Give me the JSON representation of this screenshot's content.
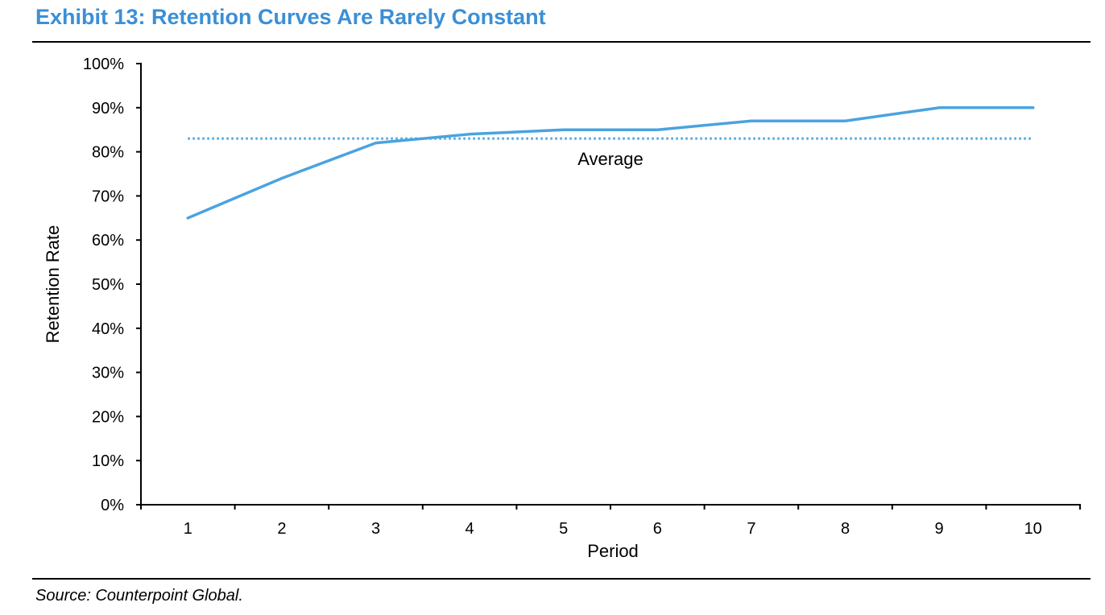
{
  "header": {
    "title": "Exhibit 13: Retention Curves Are Rarely Constant"
  },
  "footer": {
    "source": "Source: Counterpoint Global."
  },
  "colors": {
    "accent": "#3b8fd6",
    "series_line": "#4aa3df",
    "average_line": "#4aa3df"
  },
  "chart_data": {
    "type": "line",
    "title": "Exhibit 13: Retention Curves Are Rarely Constant",
    "xlabel": "Period",
    "ylabel": "Retention Rate",
    "categories": [
      "1",
      "2",
      "3",
      "4",
      "5",
      "6",
      "7",
      "8",
      "9",
      "10"
    ],
    "series": [
      {
        "values": [
          65,
          74,
          82,
          84,
          85,
          85,
          87,
          87,
          90,
          90
        ],
        "style": "solid"
      }
    ],
    "reference_lines": [
      {
        "label": "Average",
        "value": 83,
        "style": "dotted"
      }
    ],
    "ylim": [
      0,
      100
    ],
    "yticks": [
      0,
      10,
      20,
      30,
      40,
      50,
      60,
      70,
      80,
      90,
      100
    ],
    "ytick_labels": [
      "0%",
      "10%",
      "20%",
      "30%",
      "40%",
      "50%",
      "60%",
      "70%",
      "80%",
      "90%",
      "100%"
    ],
    "grid": false,
    "legend": "none"
  }
}
